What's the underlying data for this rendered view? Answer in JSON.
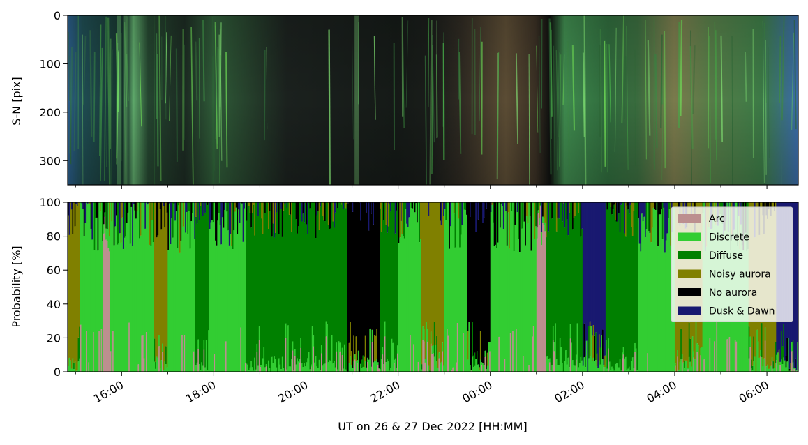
{
  "chart_data": [
    {
      "type": "heatmap",
      "panel": "keogram",
      "ylabel": "S-N [pix]",
      "ylim": [
        350,
        0
      ],
      "y_ticks": [
        "0",
        "100",
        "200",
        "300"
      ],
      "description_of_colors": [
        "#0e1a14",
        "#2f6b38",
        "#6fdc57",
        "#7a6a45",
        "#3b6fb5"
      ]
    },
    {
      "type": "area",
      "panel": "probability",
      "ylabel": "Probability [%]",
      "ylim": [
        0,
        100
      ],
      "y_ticks": [
        "0",
        "20",
        "40",
        "60",
        "80",
        "100"
      ],
      "xlabel": "UT on 26 & 27 Dec 2022 [HH:MM]",
      "x_tick_labels": [
        "16:00",
        "18:00",
        "20:00",
        "22:00",
        "00:00",
        "02:00",
        "04:00",
        "06:00"
      ],
      "x_hours": [
        16,
        18,
        20,
        22,
        24,
        26,
        28,
        30
      ],
      "xlim_hours": [
        14.83,
        30.68
      ],
      "series": [
        {
          "name": "Arc",
          "color": "#bc8f8f"
        },
        {
          "name": "Discrete",
          "color": "#32cd32"
        },
        {
          "name": "Diffuse",
          "color": "#008000"
        },
        {
          "name": "Noisy aurora",
          "color": "#808000"
        },
        {
          "name": "No aurora",
          "color": "#000000"
        },
        {
          "name": "Dusk & Dawn",
          "color": "#191970"
        }
      ],
      "segments": [
        {
          "start": 14.83,
          "end": 15.1,
          "dominant": "Noisy aurora"
        },
        {
          "start": 15.1,
          "end": 15.6,
          "dominant": "Discrete"
        },
        {
          "start": 15.6,
          "end": 15.75,
          "dominant": "Arc"
        },
        {
          "start": 15.75,
          "end": 16.7,
          "dominant": "Discrete"
        },
        {
          "start": 16.7,
          "end": 17.0,
          "dominant": "Noisy aurora"
        },
        {
          "start": 17.0,
          "end": 17.6,
          "dominant": "Discrete"
        },
        {
          "start": 17.6,
          "end": 17.9,
          "dominant": "Diffuse"
        },
        {
          "start": 17.9,
          "end": 18.7,
          "dominant": "Discrete"
        },
        {
          "start": 18.7,
          "end": 20.3,
          "dominant": "Diffuse"
        },
        {
          "start": 20.3,
          "end": 20.9,
          "dominant": "Diffuse"
        },
        {
          "start": 20.9,
          "end": 21.6,
          "dominant": "No aurora"
        },
        {
          "start": 21.6,
          "end": 22.0,
          "dominant": "Diffuse"
        },
        {
          "start": 22.0,
          "end": 22.5,
          "dominant": "Discrete"
        },
        {
          "start": 22.5,
          "end": 23.0,
          "dominant": "Noisy aurora"
        },
        {
          "start": 23.0,
          "end": 23.5,
          "dominant": "Discrete"
        },
        {
          "start": 23.5,
          "end": 24.0,
          "dominant": "No aurora"
        },
        {
          "start": 24.0,
          "end": 25.0,
          "dominant": "Discrete"
        },
        {
          "start": 25.0,
          "end": 25.2,
          "dominant": "Arc"
        },
        {
          "start": 25.2,
          "end": 26.0,
          "dominant": "Diffuse"
        },
        {
          "start": 26.0,
          "end": 26.5,
          "dominant": "Dusk & Dawn"
        },
        {
          "start": 26.5,
          "end": 27.2,
          "dominant": "Diffuse"
        },
        {
          "start": 27.2,
          "end": 28.0,
          "dominant": "Discrete"
        },
        {
          "start": 28.0,
          "end": 28.6,
          "dominant": "Noisy aurora"
        },
        {
          "start": 28.6,
          "end": 29.6,
          "dominant": "Discrete"
        },
        {
          "start": 29.6,
          "end": 30.2,
          "dominant": "Noisy aurora"
        },
        {
          "start": 30.2,
          "end": 30.68,
          "dominant": "Dusk & Dawn"
        }
      ],
      "legend_position": "top-right"
    }
  ]
}
